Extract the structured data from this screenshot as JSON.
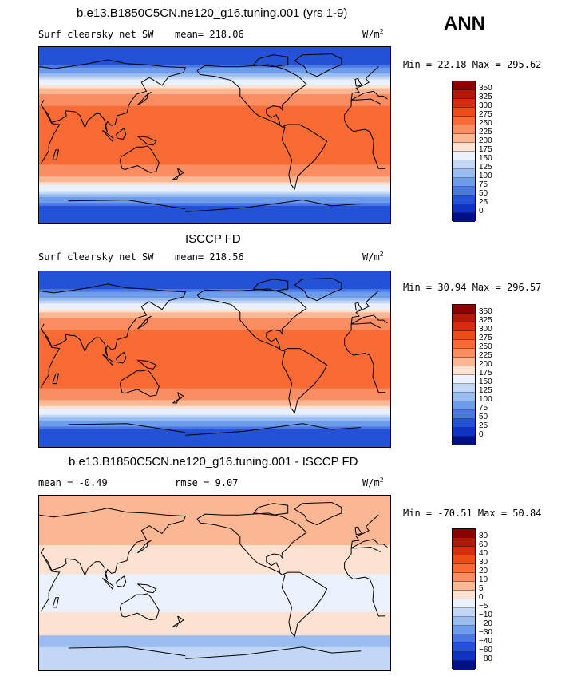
{
  "season": "ANN",
  "chart_data": [
    {
      "type": "heatmap",
      "title": "b.e13.B1850C5CN.ne120_g16.tuning.001 (yrs 1-9)",
      "left_label": "Surf clearsky net SW",
      "mean_label": "mean= 218.06",
      "units": "W/m",
      "units_exp": "2",
      "min_max_label": "Min =  22.18 Max = 295.62",
      "min": 22.18,
      "max": 295.62,
      "levels": [
        "350",
        "325",
        "300",
        "275",
        "250",
        "225",
        "200",
        "175",
        "150",
        "125",
        "100",
        "75",
        "50",
        "25",
        "0"
      ],
      "colors": [
        "#8b0000",
        "#b11a08",
        "#d32f0e",
        "#ec4c17",
        "#f86b34",
        "#fa8d62",
        "#fbb693",
        "#fde2d2",
        "#ebf1fc",
        "#c2d7f6",
        "#9bbcf0",
        "#6d9cea",
        "#4a77e4",
        "#2452d7",
        "#1133c4",
        "#000e87"
      ]
    },
    {
      "type": "heatmap",
      "title": "ISCCP FD",
      "left_label": "Surf clearsky net SW",
      "mean_label": "mean= 218.56",
      "units": "W/m",
      "units_exp": "2",
      "min_max_label": "Min =  30.94 Max = 296.57",
      "min": 30.94,
      "max": 296.57,
      "levels": [
        "350",
        "325",
        "300",
        "275",
        "250",
        "225",
        "200",
        "175",
        "150",
        "125",
        "100",
        "75",
        "50",
        "25",
        "0"
      ],
      "colors": [
        "#8b0000",
        "#b11a08",
        "#d32f0e",
        "#ec4c17",
        "#f86b34",
        "#fa8d62",
        "#fbb693",
        "#fde2d2",
        "#ebf1fc",
        "#c2d7f6",
        "#9bbcf0",
        "#6d9cea",
        "#4a77e4",
        "#2452d7",
        "#1133c4",
        "#000e87"
      ]
    },
    {
      "type": "heatmap",
      "title": "b.e13.B1850C5CN.ne120_g16.tuning.001 - ISCCP FD",
      "mean_label": "mean =   -0.49",
      "rmse_label": "rmse =    9.07",
      "units": "W/m",
      "units_exp": "2",
      "min_max_label": "Min = -70.51 Max =  50.84",
      "min": -70.51,
      "max": 50.84,
      "levels": [
        "80",
        "60",
        "40",
        "30",
        "20",
        "10",
        "5",
        "0",
        "−5",
        "−10",
        "−20",
        "−30",
        "−40",
        "−60",
        "−80"
      ],
      "colors": [
        "#8b0000",
        "#b11a08",
        "#d32f0e",
        "#ec4c17",
        "#f86b34",
        "#fa8d62",
        "#fbb693",
        "#fde2d2",
        "#ebf1fc",
        "#c2d7f6",
        "#9bbcf0",
        "#6d9cea",
        "#4a77e4",
        "#2452d7",
        "#1133c4",
        "#000e87"
      ]
    }
  ]
}
